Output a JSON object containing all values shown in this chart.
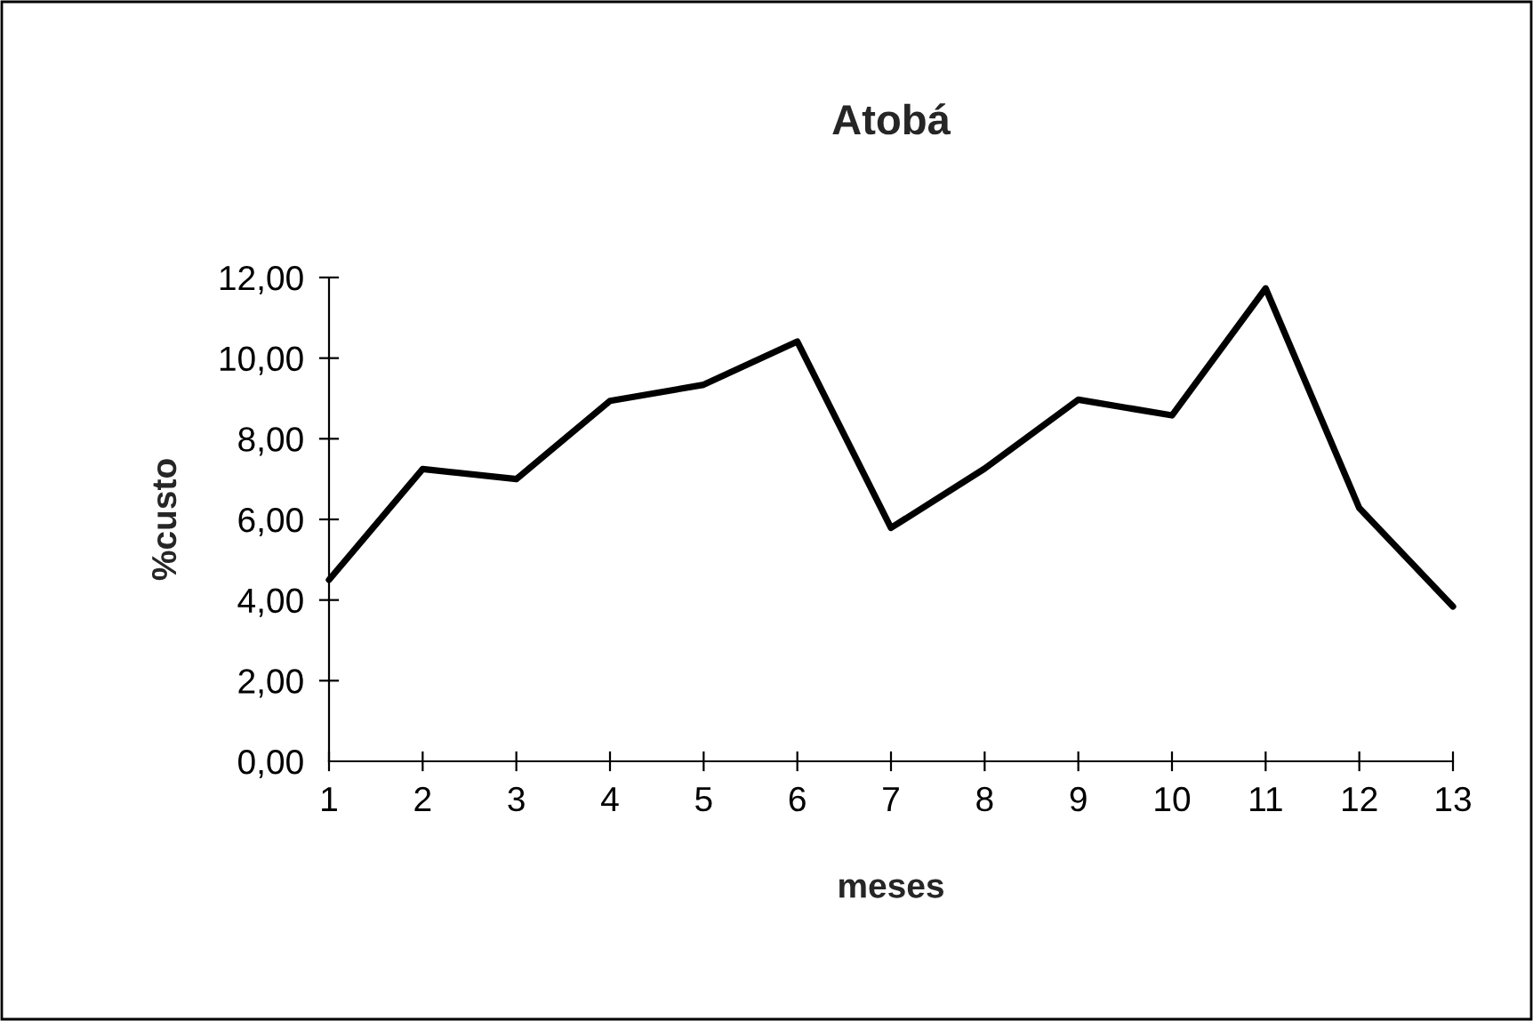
{
  "chart_data": {
    "type": "line",
    "title": "Atobá",
    "xlabel": "meses",
    "ylabel": "%custo",
    "categories": [
      "1",
      "2",
      "3",
      "4",
      "5",
      "6",
      "7",
      "8",
      "9",
      "10",
      "11",
      "12",
      "13"
    ],
    "series": [
      {
        "color": "#000000",
        "values": [
          4.5,
          7.25,
          7.0,
          8.94,
          9.34,
          10.41,
          5.79,
          7.26,
          8.97,
          8.58,
          11.73,
          6.28,
          3.84
        ]
      }
    ],
    "ylim": [
      0,
      12
    ],
    "yticks": [
      {
        "value": 0,
        "label": "0,00"
      },
      {
        "value": 2,
        "label": "2,00"
      },
      {
        "value": 4,
        "label": "4,00"
      },
      {
        "value": 6,
        "label": "6,00"
      },
      {
        "value": 8,
        "label": "8,00"
      },
      {
        "value": 10,
        "label": "10,00"
      },
      {
        "value": 12,
        "label": "12,00"
      }
    ],
    "grid": false,
    "marker": "none",
    "line_style": "solid"
  }
}
